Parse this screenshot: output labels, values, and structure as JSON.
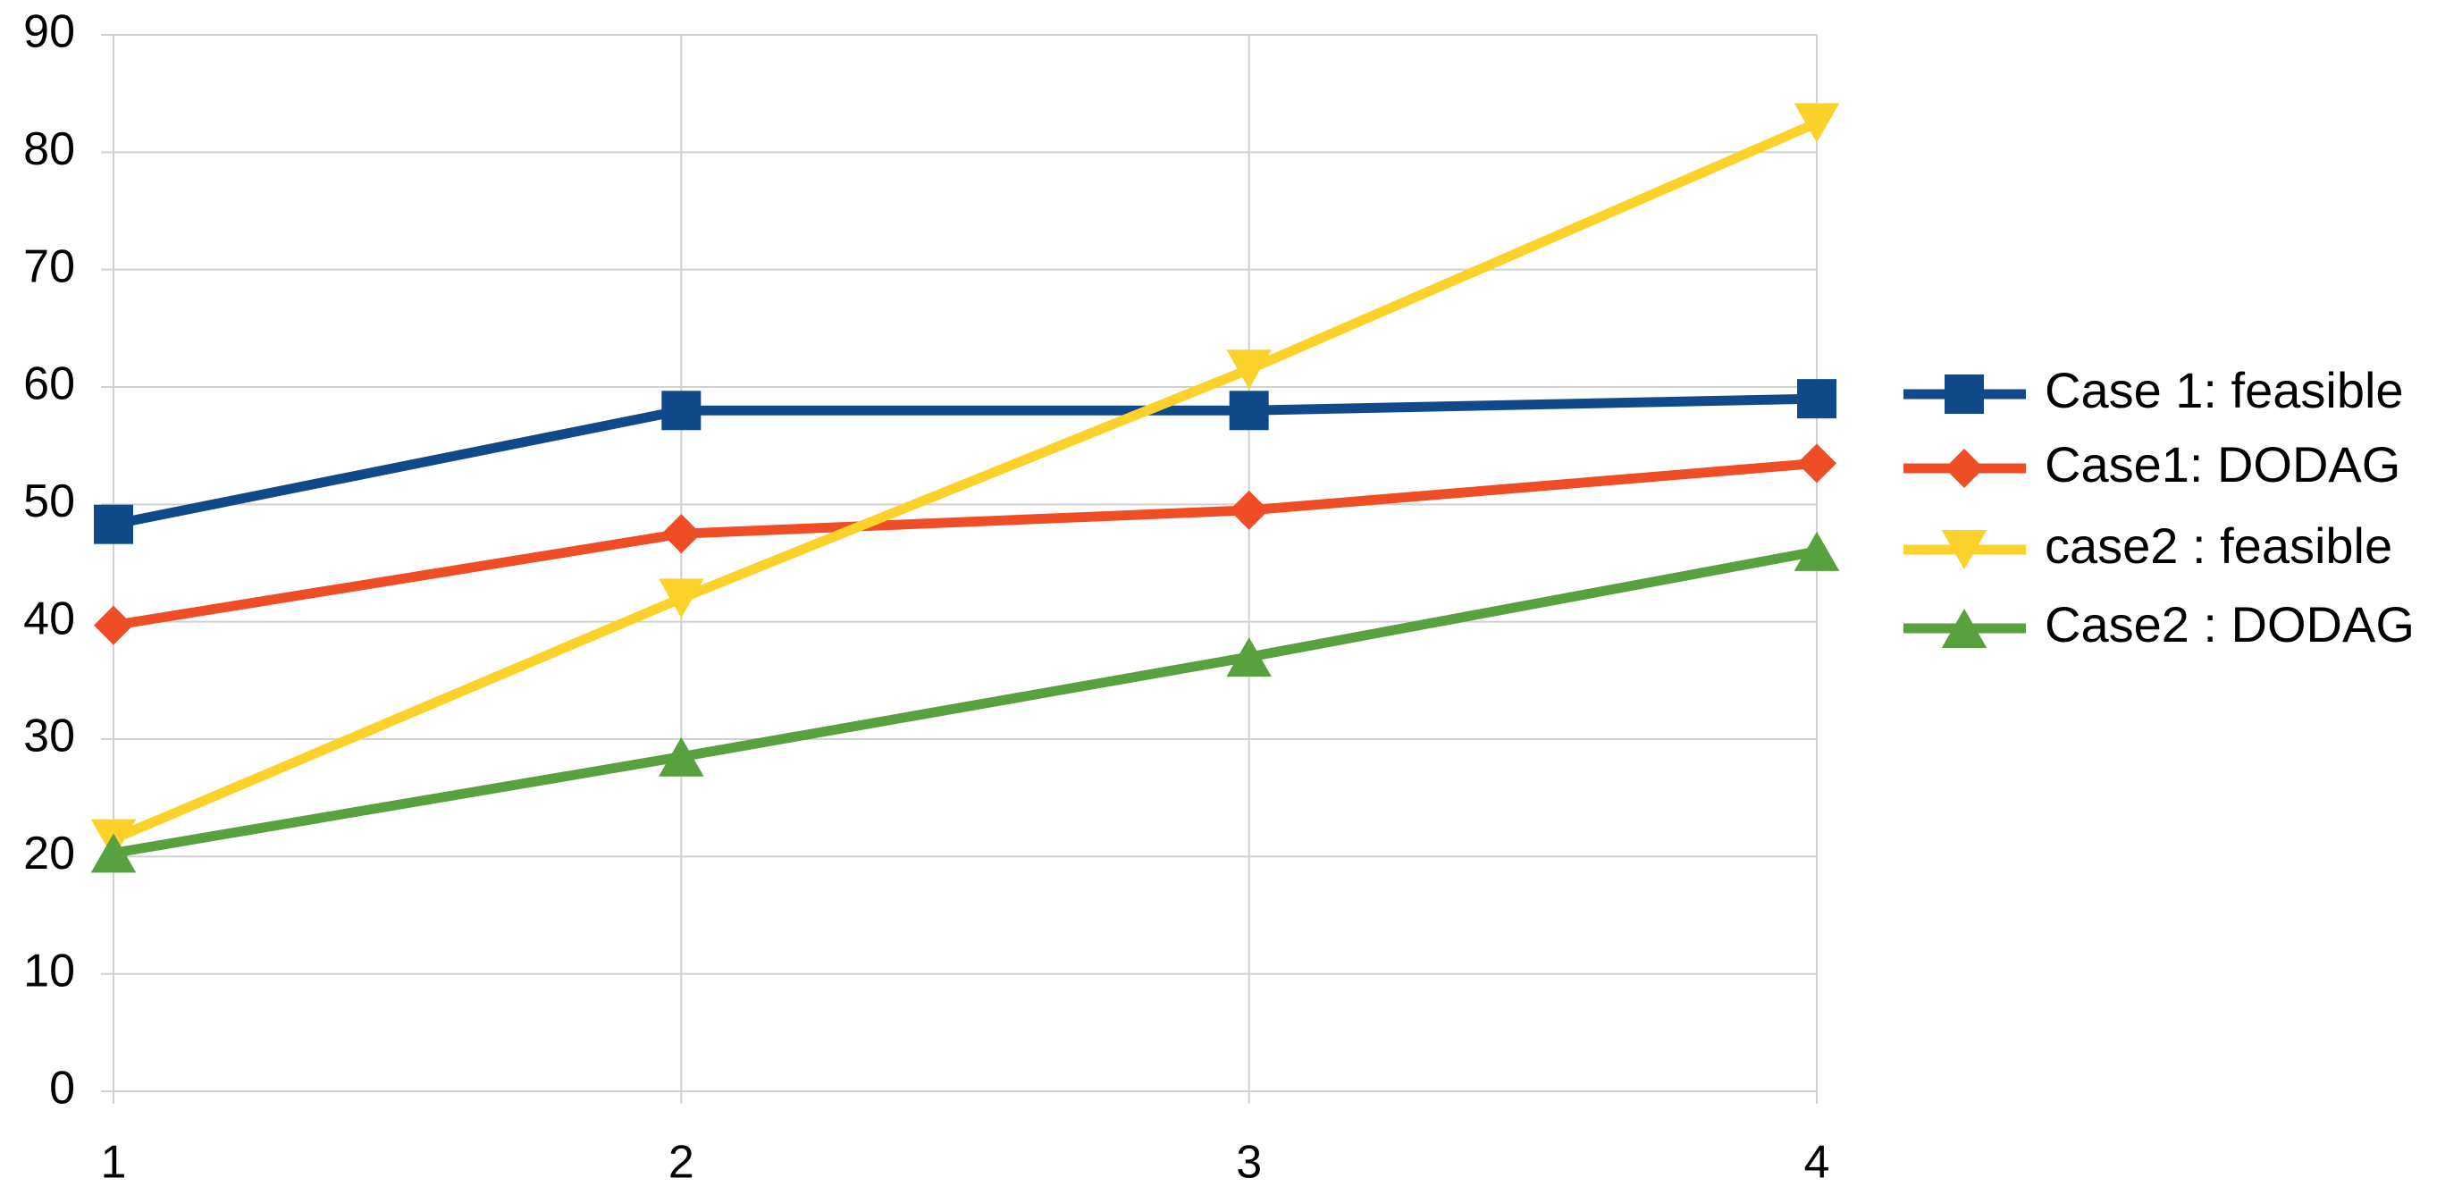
{
  "chart_data": {
    "type": "line",
    "x": [
      1,
      2,
      3,
      4
    ],
    "xlim": [
      1,
      4
    ],
    "xticks": [
      1,
      2,
      3,
      4
    ],
    "ylim": [
      0,
      90
    ],
    "yticks": [
      0,
      10,
      20,
      30,
      40,
      50,
      60,
      70,
      80,
      90
    ],
    "grid": true,
    "legend": "right",
    "series": [
      {
        "name": "Case 1: feasible",
        "color": "#114a8b",
        "marker": "square",
        "values": [
          48.3,
          58,
          58,
          59
        ]
      },
      {
        "name": "Case1: DODAG",
        "color": "#ee4d25",
        "marker": "diamond",
        "values": [
          39.7,
          47.5,
          49.5,
          53.5
        ]
      },
      {
        "name": "case2 : feasible",
        "color": "#fcd22a",
        "marker": "triangle-down",
        "values": [
          21.5,
          42,
          61.5,
          82.5
        ]
      },
      {
        "name": "Case2 : DODAG",
        "color": "#57a13f",
        "marker": "triangle-up",
        "values": [
          20.3,
          28.5,
          37,
          46
        ]
      }
    ]
  }
}
